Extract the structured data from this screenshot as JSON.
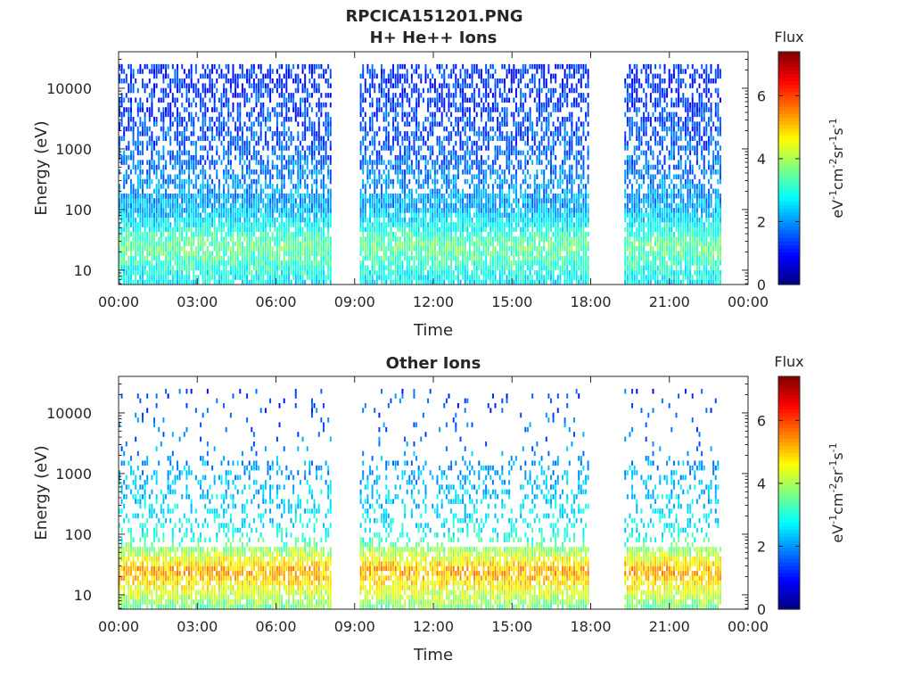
{
  "figure_title": "RPCICA151201.PNG",
  "chart_data": [
    {
      "type": "heatmap",
      "title": "H+ He++ Ions",
      "xlabel": "Time",
      "ylabel": "Energy (eV)",
      "x_ticks": [
        "00:00",
        "03:00",
        "06:00",
        "09:00",
        "12:00",
        "15:00",
        "18:00",
        "21:00",
        "00:00"
      ],
      "xlim_hours": [
        0,
        24
      ],
      "y_ticks": [
        "10",
        "100",
        "1000",
        "10000"
      ],
      "y_scale": "log",
      "ylim": [
        5.8,
        40000
      ],
      "data_gaps_hours": [
        [
          8.15,
          9.2
        ],
        [
          18.0,
          19.3
        ]
      ],
      "data_end_hour": 23.0,
      "colorbar": {
        "title": "Flux",
        "label": "eV",
        "ticks": [
          "0",
          "2",
          "4",
          "6"
        ],
        "range": [
          0,
          7.4
        ],
        "colormap": "jet"
      },
      "flux_profile": [
        {
          "energy": 10,
          "flux": 3.0
        },
        {
          "energy": 25,
          "flux": 3.6
        },
        {
          "energy": 100,
          "flux": 2.2
        },
        {
          "energy": 1000,
          "flux": 1.6
        },
        {
          "energy": 10000,
          "flux": 1.3
        }
      ]
    },
    {
      "type": "heatmap",
      "title": "Other Ions",
      "xlabel": "Time",
      "ylabel": "Energy (eV)",
      "x_ticks": [
        "00:00",
        "03:00",
        "06:00",
        "09:00",
        "12:00",
        "15:00",
        "18:00",
        "21:00",
        "00:00"
      ],
      "xlim_hours": [
        0,
        24
      ],
      "y_ticks": [
        "10",
        "100",
        "1000",
        "10000"
      ],
      "y_scale": "log",
      "ylim": [
        5.8,
        40000
      ],
      "data_gaps_hours": [
        [
          8.15,
          9.2
        ],
        [
          18.0,
          19.3
        ]
      ],
      "data_end_hour": 23.0,
      "colorbar": {
        "title": "Flux",
        "label": "eV",
        "ticks": [
          "0",
          "2",
          "4",
          "6"
        ],
        "range": [
          0,
          7.4
        ],
        "colormap": "jet"
      },
      "flux_profile": [
        {
          "energy": 10,
          "flux": 4.2
        },
        {
          "energy": 25,
          "flux": 5.3
        },
        {
          "energy": 100,
          "flux": 2.8
        },
        {
          "energy": 1000,
          "flux": 2.2
        },
        {
          "energy": 10000,
          "flux": 1.5
        }
      ]
    }
  ]
}
